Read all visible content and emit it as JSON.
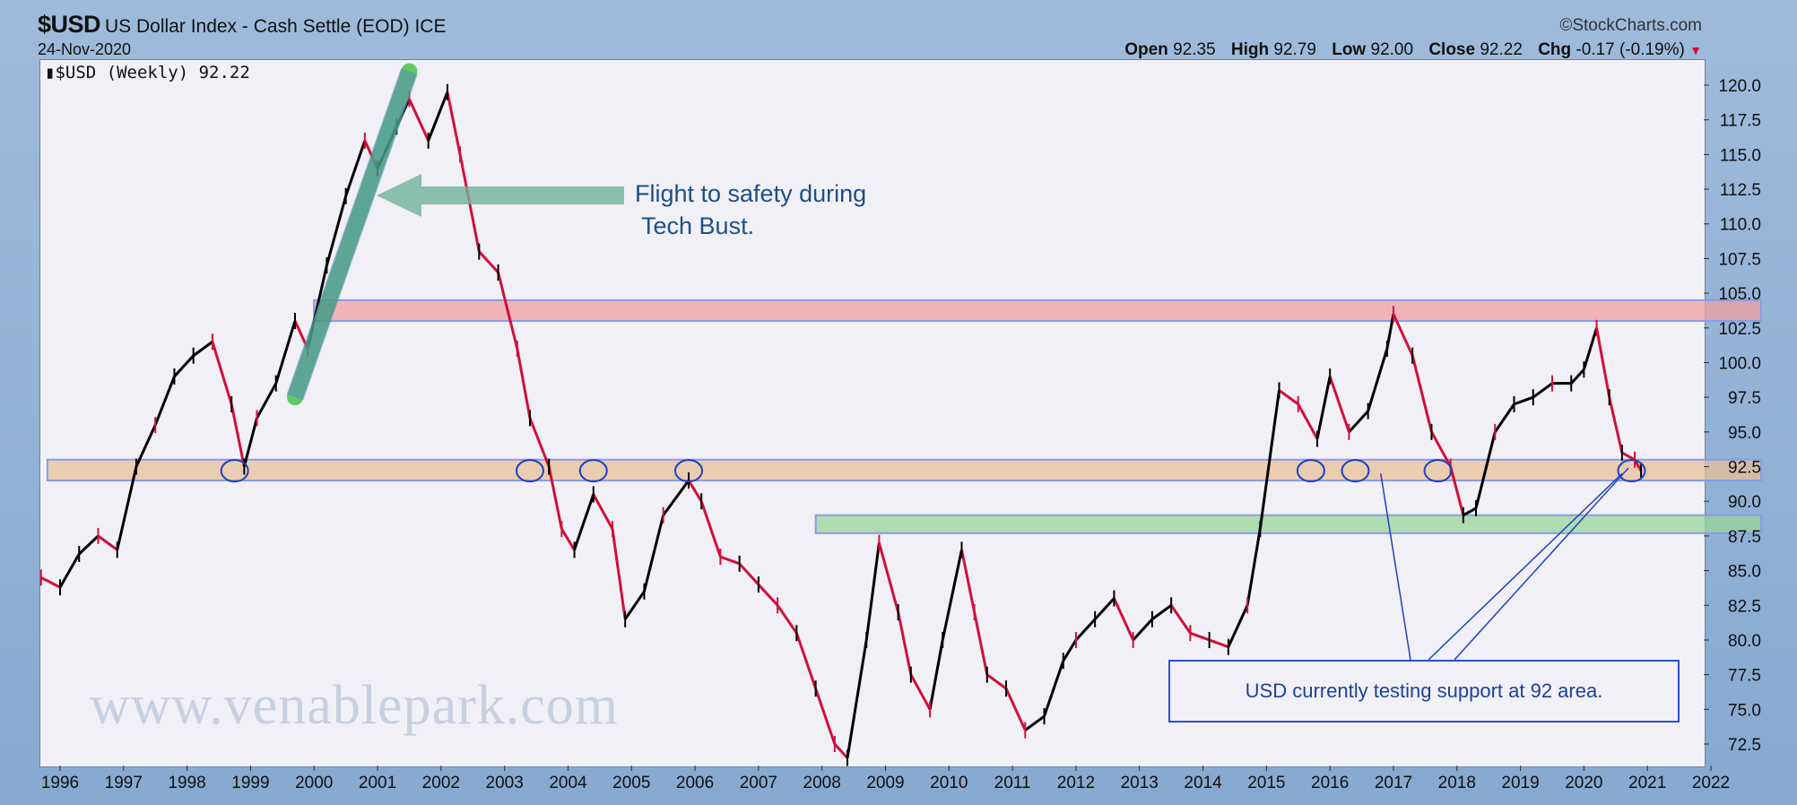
{
  "header": {
    "symbol": "$USD",
    "title": "US Dollar Index - Cash Settle (EOD)",
    "exchange": "ICE",
    "date": "24-Nov-2020",
    "brand": "StockCharts.com",
    "open_label": "Open",
    "open": "92.35",
    "high_label": "High",
    "high": "92.79",
    "low_label": "Low",
    "low": "92.00",
    "close_label": "Close",
    "close": "92.22",
    "chg_label": "Chg",
    "chg": "-0.17 (-0.19%)"
  },
  "legend": "$USD (Weekly) 92.22",
  "watermark": "www.venablepark.com",
  "annotations": {
    "tech_bust": "Flight to safety during\n Tech Bust.",
    "support": "USD currently testing support at 92 area."
  },
  "colors": {
    "up": "#000000",
    "down": "#d0103a",
    "resistance": "#f2a0a0",
    "support": "#e8c09a",
    "lower_support": "#9ad69a",
    "trend": "#2fbf2f",
    "circle": "#2040c0",
    "arrow": "#6fb39a"
  },
  "chart_data": {
    "type": "line",
    "title": "$USD (Weekly)",
    "ylim": [
      71,
      122
    ],
    "xlim": [
      1995.7,
      2022.3
    ],
    "y_ticks": [
      "72.5",
      "75.0",
      "77.5",
      "80.0",
      "82.5",
      "85.0",
      "87.5",
      "90.0",
      "92.5",
      "95.0",
      "97.5",
      "100.0",
      "102.5",
      "105.0",
      "107.5",
      "110.0",
      "112.5",
      "115.0",
      "117.5",
      "120.0"
    ],
    "x_ticks": [
      "1996",
      "1997",
      "1998",
      "1999",
      "2000",
      "2001",
      "2002",
      "2003",
      "2004",
      "2005",
      "2006",
      "2007",
      "2008",
      "2009",
      "2010",
      "2011",
      "2012",
      "2013",
      "2014",
      "2015",
      "2016",
      "2017",
      "2018",
      "2019",
      "2020",
      "2021",
      "2022"
    ],
    "series": [
      {
        "name": "$USD",
        "x": [
          1995.7,
          1996.0,
          1996.3,
          1996.6,
          1996.9,
          1997.2,
          1997.5,
          1997.8,
          1998.1,
          1998.4,
          1998.7,
          1998.9,
          1999.1,
          1999.4,
          1999.7,
          1999.9,
          2000.2,
          2000.5,
          2000.8,
          2001.0,
          2001.3,
          2001.5,
          2001.8,
          2002.1,
          2002.3,
          2002.6,
          2002.9,
          2003.2,
          2003.4,
          2003.7,
          2003.9,
          2004.1,
          2004.4,
          2004.7,
          2004.9,
          2005.2,
          2005.5,
          2005.9,
          2006.1,
          2006.4,
          2006.7,
          2007.0,
          2007.3,
          2007.6,
          2007.9,
          2008.2,
          2008.4,
          2008.7,
          2008.9,
          2009.2,
          2009.4,
          2009.7,
          2009.9,
          2010.2,
          2010.4,
          2010.6,
          2010.9,
          2011.2,
          2011.5,
          2011.8,
          2012.0,
          2012.3,
          2012.6,
          2012.9,
          2013.2,
          2013.5,
          2013.8,
          2014.1,
          2014.4,
          2014.7,
          2014.9,
          2015.2,
          2015.5,
          2015.8,
          2016.0,
          2016.3,
          2016.6,
          2016.9,
          2017.0,
          2017.3,
          2017.6,
          2017.9,
          2018.1,
          2018.3,
          2018.6,
          2018.9,
          2019.2,
          2019.5,
          2019.8,
          2020.0,
          2020.2,
          2020.4,
          2020.6,
          2020.8,
          2020.9
        ],
        "values": [
          84.5,
          83.8,
          86.2,
          87.5,
          86.5,
          92.5,
          95.5,
          99.0,
          100.5,
          101.5,
          97.0,
          92.5,
          96.0,
          98.5,
          103.0,
          101.0,
          107.0,
          112.0,
          116.0,
          114.0,
          117.0,
          119.0,
          116.0,
          119.5,
          115.0,
          108.0,
          106.5,
          101.0,
          96.0,
          92.5,
          88.0,
          86.5,
          90.5,
          88.0,
          81.5,
          83.5,
          89.0,
          91.5,
          90.0,
          86.0,
          85.5,
          84.0,
          82.5,
          80.5,
          76.5,
          72.5,
          71.5,
          80.0,
          87.0,
          82.0,
          77.5,
          75.0,
          80.0,
          86.5,
          82.0,
          77.5,
          76.5,
          73.5,
          74.5,
          78.5,
          80.0,
          81.5,
          83.0,
          80.0,
          81.5,
          82.5,
          80.5,
          80.0,
          79.5,
          82.5,
          88.0,
          98.0,
          97.0,
          94.5,
          99.0,
          95.0,
          96.5,
          101.0,
          103.5,
          100.5,
          95.0,
          92.5,
          89.0,
          89.5,
          95.0,
          97.0,
          97.5,
          98.5,
          98.5,
          99.5,
          102.5,
          97.5,
          93.5,
          93.0,
          92.2
        ]
      }
    ],
    "levels": [
      {
        "name": "resistance",
        "values": [
          103.0,
          104.5
        ]
      },
      {
        "name": "support",
        "values": [
          91.5,
          93.0
        ]
      },
      {
        "name": "lower-support",
        "values": [
          87.7,
          89.0
        ]
      }
    ]
  }
}
